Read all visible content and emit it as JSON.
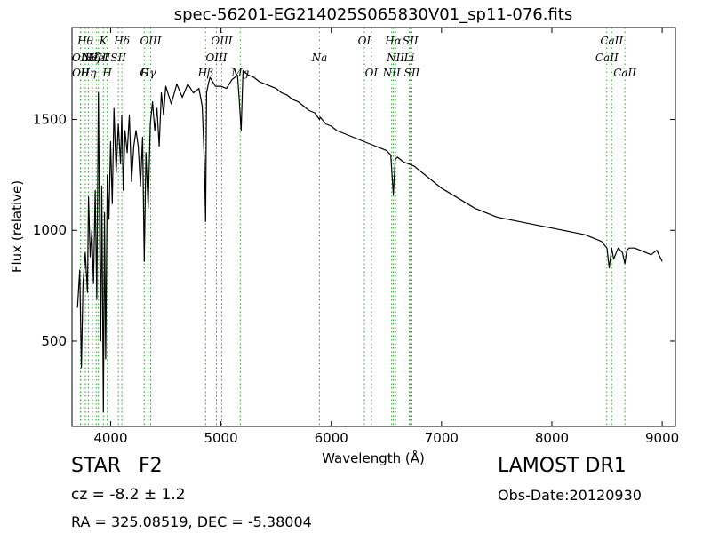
{
  "chart_data": {
    "type": "line",
    "title": "spec-56201-EG214025S065830V01_sp11-076.fits",
    "xlabel": "Wavelength (Å)",
    "ylabel": "Flux (relative)",
    "xlim": [
      3650,
      9120
    ],
    "ylim": [
      115,
      1915
    ],
    "xticks": [
      4000,
      5000,
      6000,
      7000,
      8000,
      9000
    ],
    "yticks": [
      500,
      1000,
      1500
    ],
    "grid": false,
    "legend": "none",
    "line_color": "#000000",
    "marker_color": "#2ca02c",
    "series": [
      {
        "x": [
          3700,
          3720,
          3735,
          3750,
          3770,
          3790,
          3800,
          3815,
          3830,
          3845,
          3860,
          3875,
          3889,
          3900,
          3910,
          3920,
          3934,
          3945,
          3955,
          3970,
          3985,
          4000,
          4015,
          4030,
          4050,
          4070,
          4090,
          4101,
          4115,
          4130,
          4150,
          4170,
          4190,
          4210,
          4230,
          4250,
          4270,
          4290,
          4305,
          4320,
          4340,
          4360,
          4380,
          4400,
          4420,
          4440,
          4460,
          4480,
          4500,
          4550,
          4600,
          4650,
          4700,
          4750,
          4800,
          4830,
          4850,
          4861,
          4870,
          4885,
          4900,
          4950,
          5000,
          5050,
          5100,
          5150,
          5167,
          5183,
          5200,
          5250,
          5300,
          5350,
          5400,
          5450,
          5500,
          5550,
          5600,
          5650,
          5700,
          5750,
          5800,
          5850,
          5893,
          5900,
          5950,
          6000,
          6050,
          6100,
          6150,
          6200,
          6250,
          6300,
          6350,
          6400,
          6450,
          6500,
          6540,
          6563,
          6580,
          6600,
          6650,
          6700,
          6750,
          6800,
          6850,
          6900,
          6950,
          7000,
          7100,
          7200,
          7300,
          7400,
          7500,
          7600,
          7700,
          7800,
          7900,
          8000,
          8100,
          8200,
          8300,
          8400,
          8450,
          8500,
          8520,
          8542,
          8560,
          8600,
          8640,
          8662,
          8680,
          8700,
          8750,
          8800,
          8850,
          8900,
          8950,
          8980,
          9000
        ],
        "y": [
          650,
          820,
          380,
          760,
          900,
          720,
          1150,
          880,
          1000,
          760,
          1180,
          690,
          1620,
          1050,
          500,
          1200,
          180,
          1080,
          420,
          1250,
          1050,
          1400,
          1120,
          1550,
          1260,
          1480,
          1300,
          1520,
          1180,
          1450,
          1350,
          1520,
          1220,
          1380,
          1450,
          1380,
          1200,
          1420,
          860,
          1350,
          1100,
          1480,
          1580,
          1450,
          1550,
          1380,
          1620,
          1520,
          1650,
          1570,
          1660,
          1600,
          1660,
          1620,
          1640,
          1560,
          1300,
          1040,
          1620,
          1660,
          1690,
          1650,
          1650,
          1640,
          1680,
          1700,
          1580,
          1450,
          1720,
          1700,
          1690,
          1670,
          1660,
          1650,
          1640,
          1620,
          1610,
          1590,
          1580,
          1560,
          1540,
          1530,
          1500,
          1510,
          1480,
          1470,
          1450,
          1440,
          1430,
          1420,
          1410,
          1400,
          1390,
          1380,
          1370,
          1360,
          1340,
          1160,
          1320,
          1330,
          1310,
          1300,
          1290,
          1270,
          1250,
          1230,
          1210,
          1190,
          1160,
          1130,
          1100,
          1080,
          1060,
          1050,
          1040,
          1030,
          1020,
          1010,
          1000,
          990,
          980,
          960,
          950,
          920,
          830,
          920,
          870,
          920,
          900,
          850,
          910,
          920,
          920,
          910,
          900,
          890,
          910,
          880,
          860
        ]
      }
    ],
    "line_markers": [
      {
        "x": 3727,
        "label": "OII",
        "row": 2
      },
      {
        "x": 3729,
        "label": "OII",
        "row": 3
      },
      {
        "x": 3771,
        "label": "Hθ",
        "row": 1
      },
      {
        "x": 3798,
        "label": "Hη",
        "row": 3
      },
      {
        "x": 3835,
        "label": "Hζ",
        "row": 2
      },
      {
        "x": 3869,
        "label": "NeIII",
        "row": 2
      },
      {
        "x": 3889,
        "label": "HeI",
        "row": 2
      },
      {
        "x": 3934,
        "label": "K",
        "row": 1
      },
      {
        "x": 3969,
        "label": "H",
        "row": 3
      },
      {
        "x": 4070,
        "label": "SII",
        "row": 2
      },
      {
        "x": 4102,
        "label": "Hδ",
        "row": 1
      },
      {
        "x": 4304,
        "label": "G",
        "row": 4
      },
      {
        "x": 4340,
        "label": "Hγ",
        "row": 3
      },
      {
        "x": 4363,
        "label": "OIII",
        "row": 1
      },
      {
        "x": 4861,
        "label": "Hβ",
        "row": 3
      },
      {
        "x": 4959,
        "label": "OIII",
        "row": 2
      },
      {
        "x": 5007,
        "label": "OIII",
        "row": 1
      },
      {
        "x": 5175,
        "label": "Mg",
        "row": 3
      },
      {
        "x": 5893,
        "label": "Na",
        "row": 2
      },
      {
        "x": 6300,
        "label": "OI",
        "row": 1
      },
      {
        "x": 6364,
        "label": "OI",
        "row": 3
      },
      {
        "x": 6548,
        "label": "NII",
        "row": 3
      },
      {
        "x": 6563,
        "label": "Hα",
        "row": 1
      },
      {
        "x": 6583,
        "label": "NII",
        "row": 2
      },
      {
        "x": 6707,
        "label": "Li",
        "row": 2
      },
      {
        "x": 6717,
        "label": "SII",
        "row": 1
      },
      {
        "x": 6731,
        "label": "SII",
        "row": 3
      },
      {
        "x": 8498,
        "label": "CaII",
        "row": 2
      },
      {
        "x": 8542,
        "label": "CaII",
        "row": 1
      },
      {
        "x": 8662,
        "label": "CaII",
        "row": 3
      }
    ]
  },
  "info": {
    "class": "STAR",
    "subclass": "F2",
    "cz": "cz = -8.2 ± 1.2",
    "radec": "RA = 325.08519, DEC = -5.38004",
    "survey": "LAMOST DR1",
    "obs_date": "Obs-Date:20120930"
  }
}
